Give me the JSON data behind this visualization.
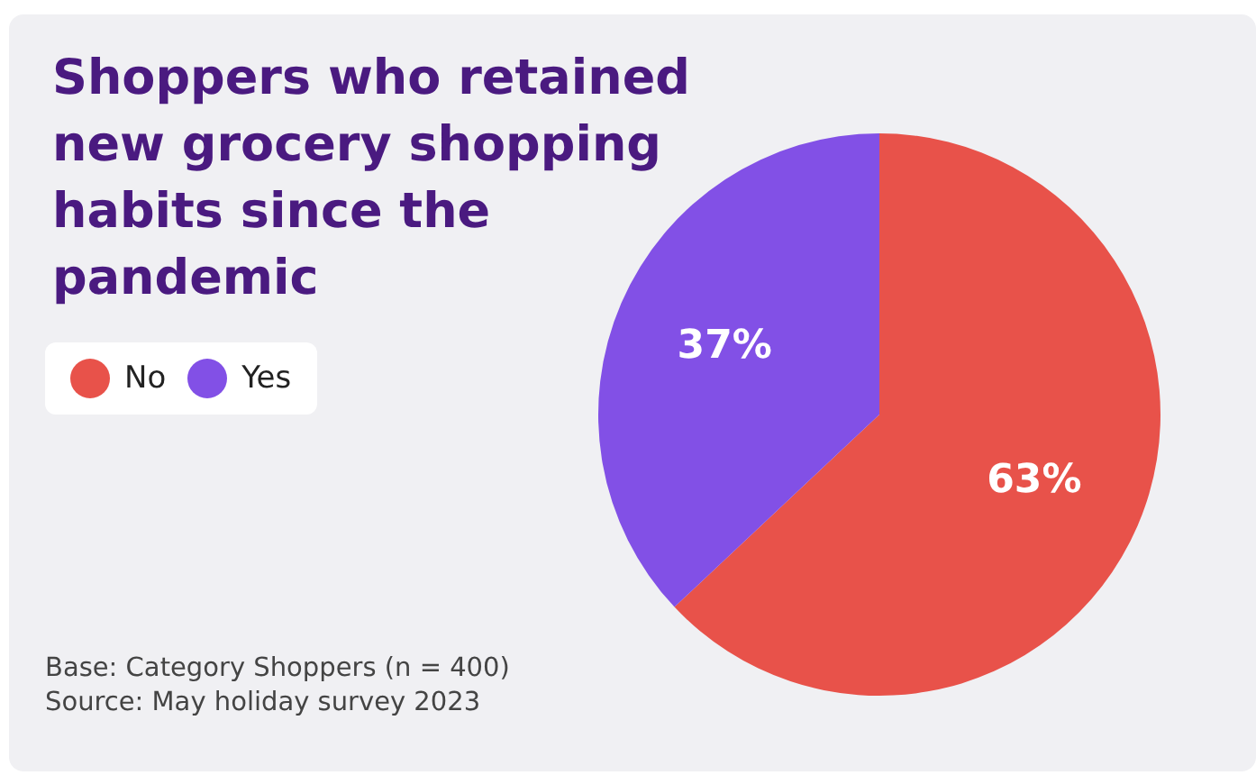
{
  "chart_data": {
    "type": "pie",
    "title": "Shoppers who retained new grocery shopping habits since the pandemic",
    "categories": [
      "No",
      "Yes"
    ],
    "values": [
      63,
      37
    ],
    "colors": [
      "#e8524a",
      "#8250e6"
    ],
    "value_labels": [
      "63%",
      "37%"
    ],
    "legend": "top left",
    "annotations": [
      "Base: Category Shoppers (n = 400)",
      "Source: May holiday survey 2023"
    ]
  }
}
